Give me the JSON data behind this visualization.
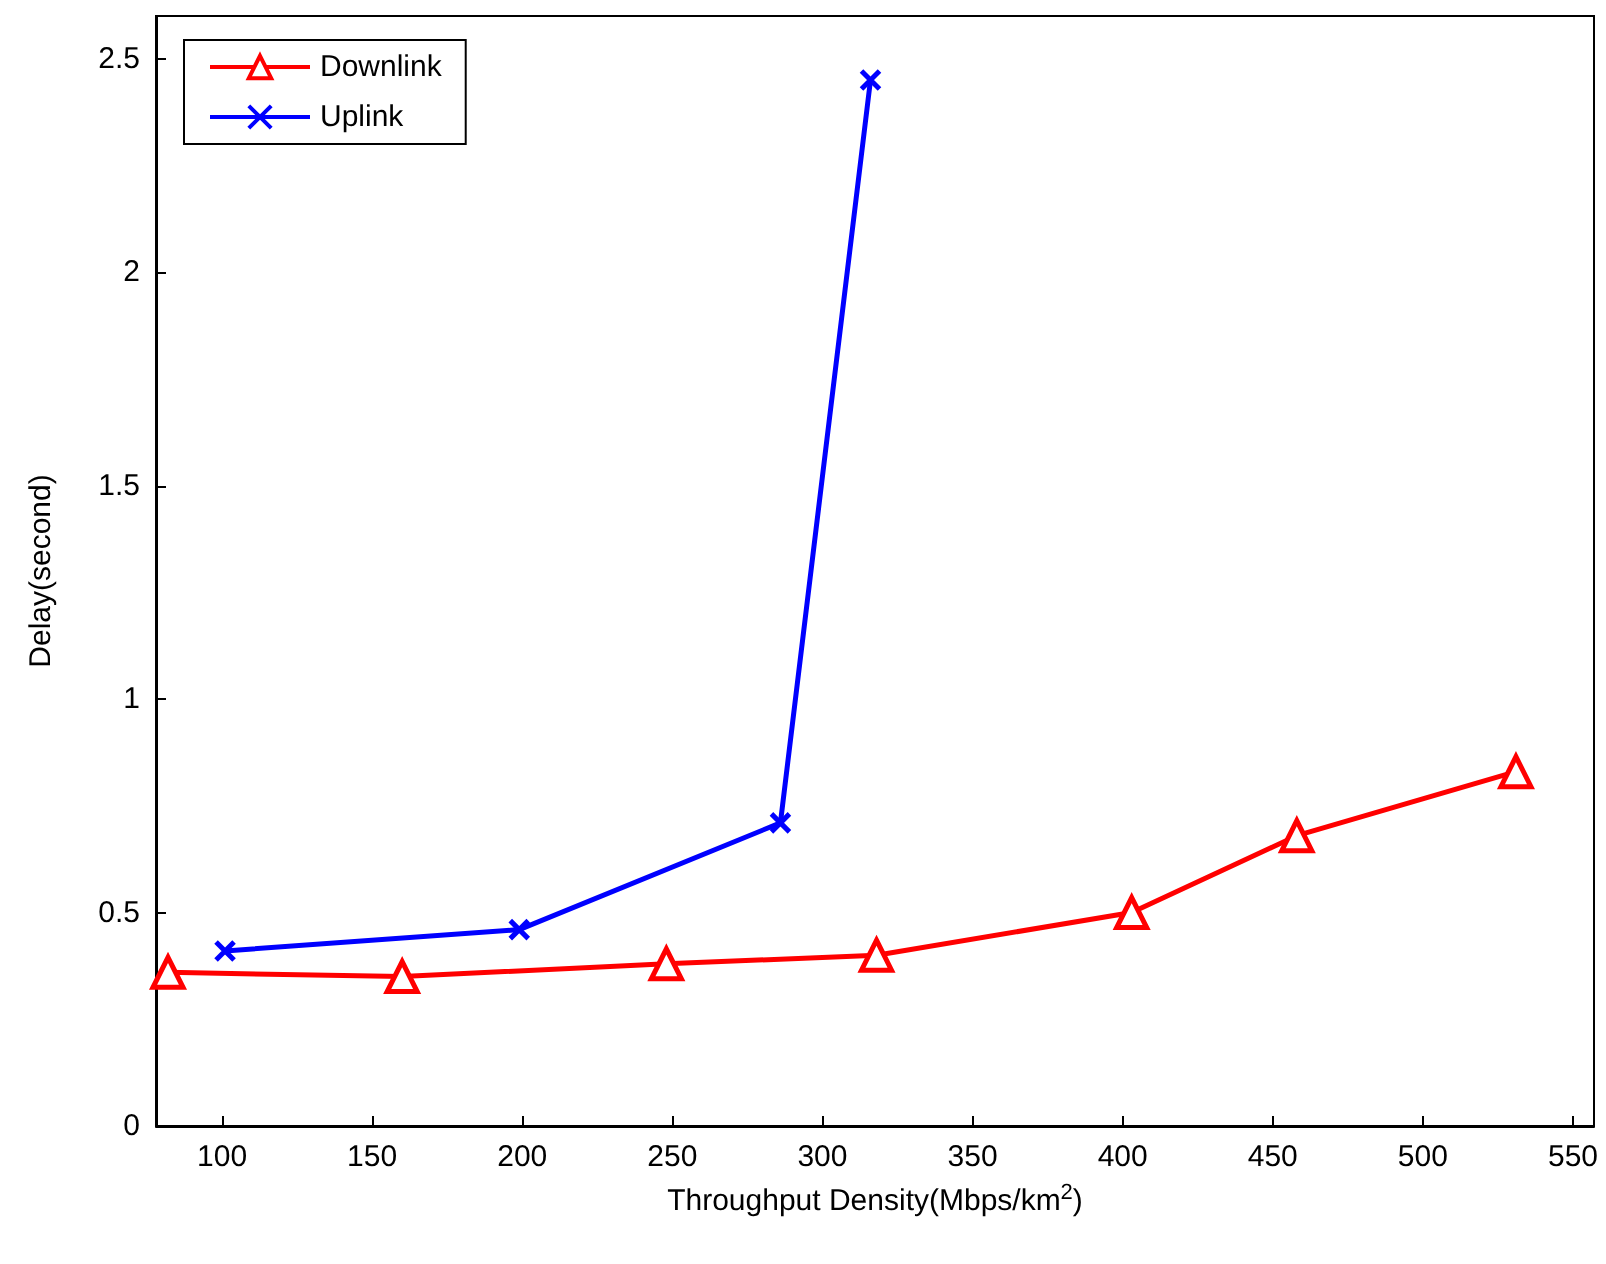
{
  "chart_data": {
    "type": "line",
    "xlabel": "Throughput Density(Mbps/km$^{2}$)",
    "ylabel": "Delay(second)",
    "xlim": [
      78,
      557
    ],
    "xticks": [
      100,
      150,
      200,
      250,
      300,
      350,
      400,
      450,
      500,
      550
    ],
    "ylim": [
      0,
      2.6
    ],
    "yticks": [
      0,
      0.5,
      1,
      1.5,
      2,
      2.5
    ],
    "grid": false,
    "legend": "top left",
    "line_style": "solid",
    "series": [
      {
        "name": "Downlink",
        "color": "#ff0000",
        "marker": "triangle",
        "x": [
          82,
          160,
          248,
          318,
          403,
          458,
          531
        ],
        "values": [
          0.36,
          0.35,
          0.38,
          0.4,
          0.5,
          0.68,
          0.83
        ]
      },
      {
        "name": "Uplink",
        "color": "#0000ff",
        "marker": "cross",
        "x": [
          101,
          199,
          286,
          316
        ],
        "values": [
          0.41,
          0.46,
          0.71,
          2.45
        ]
      }
    ]
  }
}
